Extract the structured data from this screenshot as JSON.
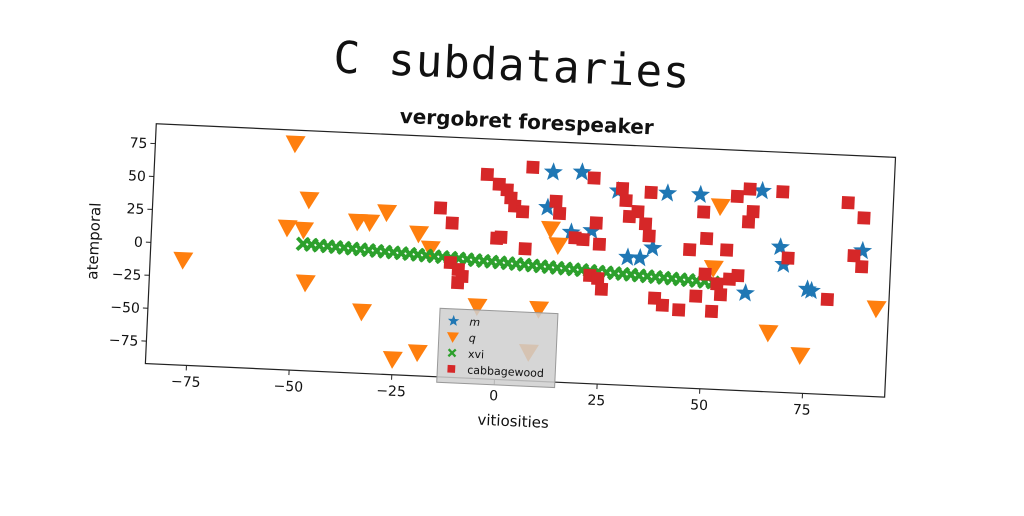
{
  "page": {
    "title": "C subdataries"
  },
  "chart_data": {
    "type": "scatter",
    "title": "vergobret forespeaker",
    "xlabel": "vitiosities",
    "ylabel": "atemporal",
    "xlim": [
      -85,
      95
    ],
    "ylim": [
      -92,
      90
    ],
    "xticks": [
      -75,
      -50,
      -25,
      0,
      25,
      50,
      75
    ],
    "yticks": [
      -75,
      -50,
      -25,
      0,
      25,
      50,
      75
    ],
    "xtick_labels": [
      "−75",
      "−50",
      "−25",
      "0",
      "25",
      "50",
      "75"
    ],
    "ytick_labels": [
      "−75",
      "−50",
      "−25",
      "0",
      "25",
      "50",
      "75"
    ],
    "grid": false,
    "legend_position": "bottom-center",
    "series": [
      {
        "name": "m",
        "marker": "star",
        "color": "#1f77b4",
        "points": [
          [
            12,
            67
          ],
          [
            19,
            68
          ],
          [
            11,
            40
          ],
          [
            17,
            22
          ],
          [
            22,
            24
          ],
          [
            31,
            5
          ],
          [
            34,
            5
          ],
          [
            37,
            13
          ],
          [
            40,
            55
          ],
          [
            48,
            55
          ],
          [
            63,
            60
          ],
          [
            68,
            18
          ],
          [
            69,
            5
          ],
          [
            75,
            -13
          ],
          [
            76,
            -14
          ],
          [
            60,
            -18
          ],
          [
            88,
            18
          ],
          [
            28,
            55
          ]
        ]
      },
      {
        "name": "q",
        "marker": "triangle-down",
        "color": "#ff7f0e",
        "points": [
          [
            -77,
            -12
          ],
          [
            -51,
            80
          ],
          [
            -47,
            38
          ],
          [
            -52,
            16
          ],
          [
            -48,
            15
          ],
          [
            -35,
            23
          ],
          [
            -32,
            23
          ],
          [
            -28,
            31
          ],
          [
            -20,
            16
          ],
          [
            -17,
            5
          ],
          [
            -47,
            -25
          ],
          [
            -33,
            -45
          ],
          [
            -25,
            -80
          ],
          [
            -19,
            -74
          ],
          [
            -5,
            -37
          ],
          [
            10,
            -37
          ],
          [
            12,
            24
          ],
          [
            14,
            12
          ],
          [
            8,
            -70
          ],
          [
            53,
            47
          ],
          [
            52,
            0
          ],
          [
            66,
            -47
          ],
          [
            74,
            -63
          ],
          [
            92,
            -25
          ]
        ]
      },
      {
        "name": "xvi",
        "marker": "x",
        "color": "#2ca02c",
        "points": [
          [
            -48,
            4
          ],
          [
            -46,
            3.7
          ],
          [
            -44,
            3.4
          ],
          [
            -42,
            3.1
          ],
          [
            -40,
            2.8
          ],
          [
            -38,
            2.5
          ],
          [
            -36,
            2.2
          ],
          [
            -34,
            1.9
          ],
          [
            -32,
            1.6
          ],
          [
            -30,
            1.3
          ],
          [
            -28,
            1
          ],
          [
            -26,
            0.7
          ],
          [
            -24,
            0.4
          ],
          [
            -22,
            0.1
          ],
          [
            -20,
            -0.2
          ],
          [
            -18,
            -0.5
          ],
          [
            -16,
            -0.8
          ],
          [
            -14,
            -1.1
          ],
          [
            -12,
            -1.4
          ],
          [
            -10,
            -1.7
          ],
          [
            -8,
            -2
          ],
          [
            -6,
            -2.3
          ],
          [
            -4,
            -2.6
          ],
          [
            -2,
            -2.9
          ],
          [
            0,
            -3.2
          ],
          [
            2,
            -3.5
          ],
          [
            4,
            -3.8
          ],
          [
            6,
            -4.1
          ],
          [
            8,
            -4.4
          ],
          [
            10,
            -4.7
          ],
          [
            12,
            -5
          ],
          [
            14,
            -5.3
          ],
          [
            16,
            -5.6
          ],
          [
            18,
            -5.9
          ],
          [
            20,
            -6.2
          ],
          [
            22,
            -6.5
          ],
          [
            24,
            -6.8
          ],
          [
            26,
            -7.1
          ],
          [
            28,
            -7.4
          ],
          [
            30,
            -7.7
          ],
          [
            32,
            -8
          ],
          [
            34,
            -8.3
          ],
          [
            36,
            -8.6
          ],
          [
            38,
            -8.9
          ],
          [
            40,
            -9.2
          ],
          [
            42,
            -9.5
          ],
          [
            44,
            -9.8
          ],
          [
            46,
            -10.1
          ],
          [
            48,
            -10.4
          ],
          [
            50,
            -10.7
          ],
          [
            52,
            -11
          ]
        ]
      },
      {
        "name": "cabbagewood",
        "marker": "square",
        "color": "#d62728",
        "points": [
          [
            -4,
            63
          ],
          [
            -1,
            56
          ],
          [
            1,
            52
          ],
          [
            2,
            46
          ],
          [
            3,
            40
          ],
          [
            5,
            36
          ],
          [
            7,
            70
          ],
          [
            13,
            45
          ],
          [
            14,
            36
          ],
          [
            18,
            18
          ],
          [
            20,
            17
          ],
          [
            22,
            64
          ],
          [
            23,
            30
          ],
          [
            24,
            14
          ],
          [
            29,
            57
          ],
          [
            30,
            48
          ],
          [
            31,
            36
          ],
          [
            33,
            40
          ],
          [
            35,
            31
          ],
          [
            36,
            55
          ],
          [
            36,
            22
          ],
          [
            -1,
            15
          ],
          [
            0,
            16
          ],
          [
            6,
            8
          ],
          [
            -15,
            36
          ],
          [
            -12,
            25
          ],
          [
            -12,
            -5
          ],
          [
            -10,
            -10
          ],
          [
            -9,
            -15
          ],
          [
            -10,
            -20
          ],
          [
            22,
            -10
          ],
          [
            24,
            -12
          ],
          [
            25,
            -20
          ],
          [
            38,
            -25
          ],
          [
            40,
            -30
          ],
          [
            44,
            -33
          ],
          [
            48,
            -22
          ],
          [
            52,
            -33
          ],
          [
            53,
            -12
          ],
          [
            54,
            -20
          ],
          [
            46,
            13
          ],
          [
            50,
            22
          ],
          [
            49,
            42
          ],
          [
            55,
            14
          ],
          [
            50,
            -5
          ],
          [
            56,
            -8
          ],
          [
            58,
            -5
          ],
          [
            60,
            61
          ],
          [
            57,
            55
          ],
          [
            61,
            44
          ],
          [
            60,
            36
          ],
          [
            68,
            60
          ],
          [
            70,
            10
          ],
          [
            84,
            54
          ],
          [
            88,
            43
          ],
          [
            86,
            14
          ],
          [
            88,
            6
          ],
          [
            80,
            -20
          ]
        ]
      }
    ]
  }
}
